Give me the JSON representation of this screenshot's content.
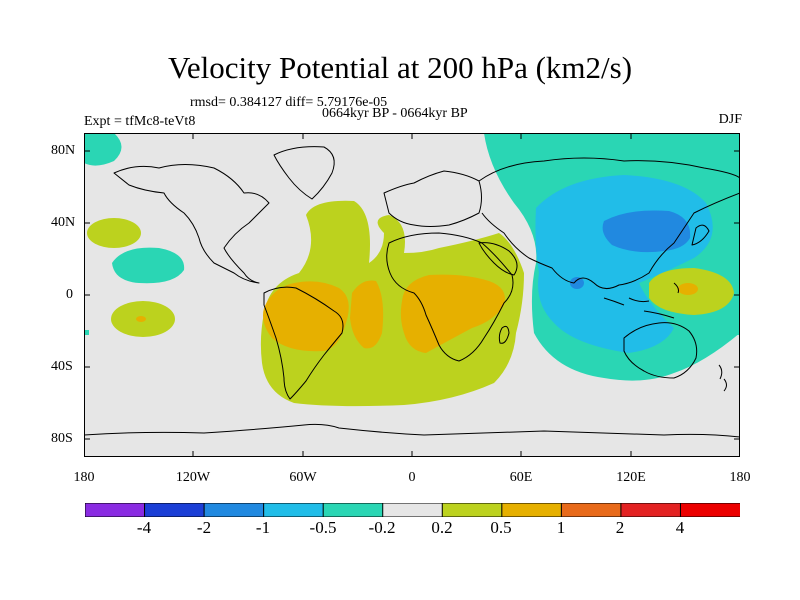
{
  "title": "Velocity Potential at 200 hPa (km2/s)",
  "stats": "rmsd= 0.384127 diff= 5.79176e-05",
  "experiment": "Expt = tfMc8-teVt8",
  "period": "0664kyr BP - 0664kyr BP",
  "season": "DJF",
  "lat_ticks": [
    "80N",
    "40N",
    "0",
    "40S",
    "80S"
  ],
  "lon_ticks": [
    "180",
    "120W",
    "60W",
    "0",
    "60E",
    "120E",
    "180"
  ],
  "colorbar": {
    "labels": [
      "-4",
      "-2",
      "-1",
      "-0.5",
      "-0.2",
      "0.2",
      "0.5",
      "1",
      "2",
      "4"
    ],
    "colors": [
      "#8a2be2",
      "#1c3fd6",
      "#2189e0",
      "#21bde8",
      "#2ad6b4",
      "#e6e6e6",
      "#bcd21e",
      "#e6b000",
      "#e86a1a",
      "#e32222",
      "#ec0000"
    ]
  }
}
